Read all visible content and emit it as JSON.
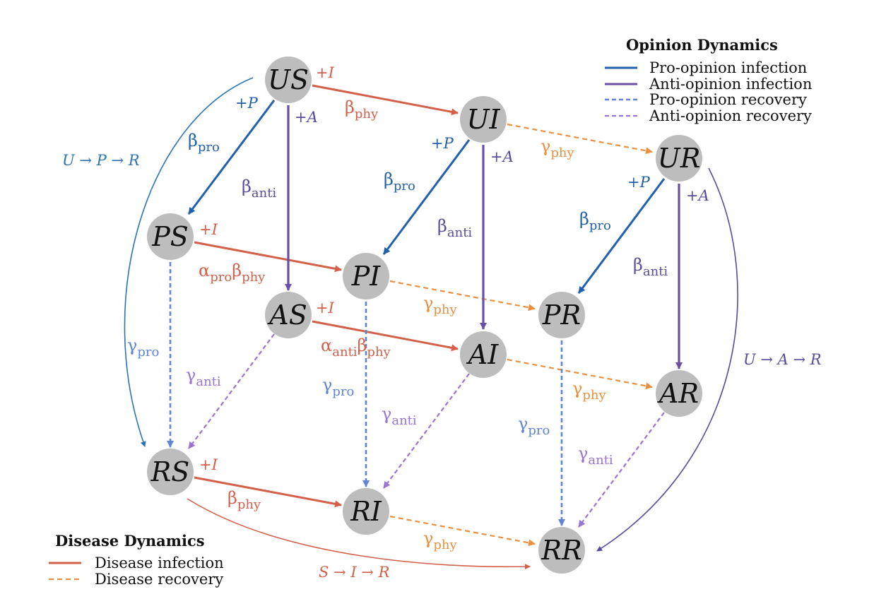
{
  "colors": {
    "disease_infection": "#d4604a",
    "disease_recovery": "#eb8f3e",
    "pro_infection": "#2160ad",
    "anti_infection": "#6a4fa6",
    "pro_recovery": "#5f85d3",
    "anti_recovery": "#9a74d4",
    "loop_pro": "#2a74b5",
    "loop_anti": "#5b4b9a",
    "loop_disease": "#d4604a",
    "node_fill": "#bdbdbd"
  },
  "nodes": {
    "US": "US",
    "UI": "UI",
    "UR": "UR",
    "PS": "PS",
    "PI": "PI",
    "PR": "PR",
    "AS": "AS",
    "AI": "AI",
    "AR": "AR",
    "RS": "RS",
    "RI": "RI",
    "RR": "RR"
  },
  "legend_opinion": {
    "title": "Opinion Dynamics",
    "items": [
      {
        "label": "Pro-opinion infection",
        "style": "solid",
        "color": "#2160ad"
      },
      {
        "label": "Anti-opinion infection",
        "style": "solid",
        "color": "#6a4fa6"
      },
      {
        "label": "Pro-opinion recovery",
        "style": "dashed",
        "color": "#5f85d3"
      },
      {
        "label": "Anti-opinion recovery",
        "style": "dashed",
        "color": "#9a74d4"
      }
    ]
  },
  "legend_disease": {
    "title": "Disease Dynamics",
    "items": [
      {
        "label": "Disease infection",
        "style": "solid",
        "color": "#d4604a"
      },
      {
        "label": "Disease recovery",
        "style": "dashed",
        "color": "#eb8f3e"
      }
    ]
  },
  "labels": {
    "plus_i": "+I",
    "plus_p": "+P",
    "plus_a": "+A",
    "beta": "β",
    "gamma": "γ",
    "alpha": "α",
    "phy": "phy",
    "pro": "pro",
    "anti": "anti"
  },
  "loops": {
    "upr": "U → P → R",
    "uar": "U → A → R",
    "sir": "S → I → R"
  }
}
